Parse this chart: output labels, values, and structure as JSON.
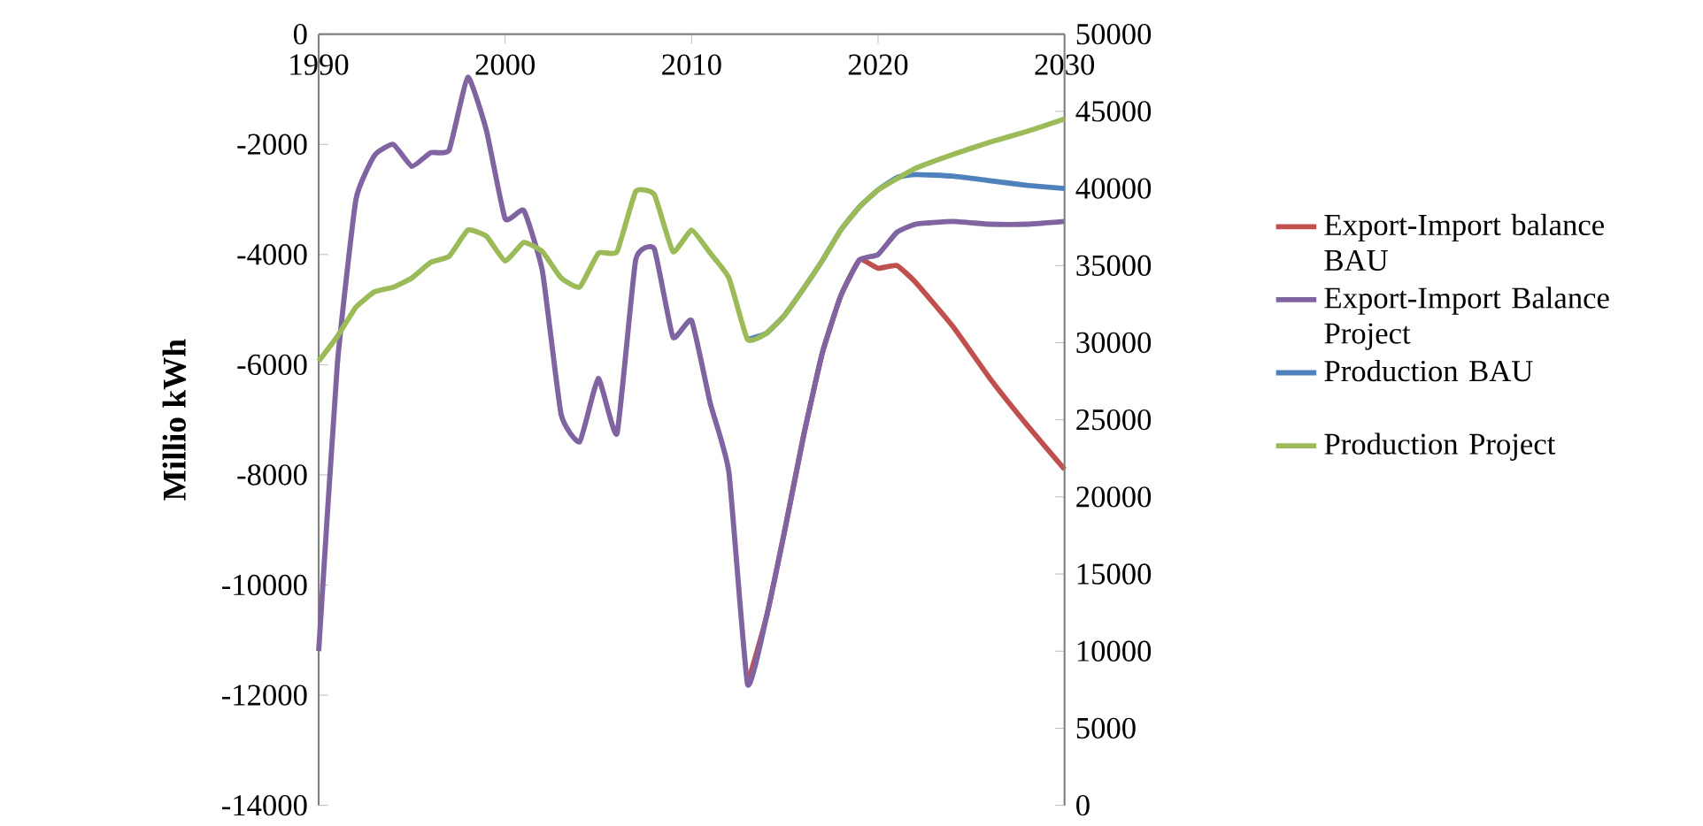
{
  "chart_data": {
    "type": "line",
    "ylabel": "Millio kWh",
    "legend": "right",
    "xlim": [
      1990,
      2030
    ],
    "xticks": [
      1990,
      2000,
      2010,
      2020,
      2030
    ],
    "ylim": [
      -14000,
      0
    ],
    "yticks": [
      0,
      -2000,
      -4000,
      -6000,
      -8000,
      -10000,
      -12000,
      -14000
    ],
    "y2lim": [
      0,
      50000
    ],
    "y2ticks": [
      0,
      5000,
      10000,
      15000,
      20000,
      25000,
      30000,
      35000,
      40000,
      45000,
      50000
    ],
    "series": [
      {
        "name": "Export-Import balance BAU",
        "color": "#c0504d",
        "x": [
          2013,
          2014,
          2015,
          2016,
          2017,
          2018,
          2019,
          2020,
          2021,
          2022,
          2024,
          2026,
          2028,
          2030
        ],
        "values": [
          -11800,
          -10600,
          -9000,
          -7300,
          -5800,
          -4750,
          -4100,
          -4250,
          -4200,
          -4500,
          -5300,
          -6250,
          -7100,
          -7900
        ]
      },
      {
        "name": "Export-Import Balance Project",
        "color": "#8064a2",
        "x": [
          1990,
          1991,
          1992,
          1993,
          1994,
          1995,
          1996,
          1997,
          1998,
          1999,
          2000,
          2001,
          2002,
          2003,
          2004,
          2005,
          2006,
          2007,
          2008,
          2009,
          2010,
          2011,
          2012,
          2013,
          2014,
          2015,
          2016,
          2017,
          2018,
          2019,
          2020,
          2021,
          2022,
          2024,
          2026,
          2028,
          2030
        ],
        "values": [
          -11200,
          -6000,
          -3000,
          -2200,
          -2000,
          -2400,
          -2150,
          -2100,
          -780,
          -1750,
          -3350,
          -3200,
          -4300,
          -6900,
          -7400,
          -6250,
          -7250,
          -4100,
          -3900,
          -5500,
          -5200,
          -6700,
          -7950,
          -11800,
          -10600,
          -9000,
          -7300,
          -5800,
          -4750,
          -4100,
          -4000,
          -3600,
          -3450,
          -3400,
          -3450,
          -3450,
          -3400
        ]
      },
      {
        "name": "Production BAU",
        "color": "#4f81bd",
        "axis": "y2",
        "x": [
          2013,
          2014,
          2015,
          2016,
          2017,
          2018,
          2019,
          2020,
          2021,
          2022,
          2024,
          2026,
          2028,
          2030
        ],
        "values": [
          30200,
          30600,
          31800,
          33500,
          35300,
          37300,
          38800,
          39900,
          40700,
          40900,
          40800,
          40500,
          40200,
          40000
        ]
      },
      {
        "name": "Production Project",
        "color": "#9bbb59",
        "axis": "y2",
        "x": [
          1990,
          1991,
          1992,
          1993,
          1994,
          1995,
          1996,
          1997,
          1998,
          1999,
          2000,
          2001,
          2002,
          2003,
          2004,
          2005,
          2006,
          2007,
          2008,
          2009,
          2010,
          2011,
          2012,
          2013,
          2014,
          2015,
          2016,
          2017,
          2018,
          2019,
          2020,
          2022,
          2024,
          2026,
          2028,
          2030
        ],
        "values": [
          28800,
          30400,
          32300,
          33300,
          33600,
          34200,
          35200,
          35600,
          37300,
          36900,
          35300,
          36500,
          35900,
          34200,
          33600,
          35800,
          35900,
          39800,
          39600,
          35900,
          37300,
          35800,
          34200,
          30200,
          30600,
          31800,
          33500,
          35300,
          37300,
          38800,
          39900,
          41300,
          42200,
          43000,
          43700,
          44500
        ]
      }
    ]
  }
}
